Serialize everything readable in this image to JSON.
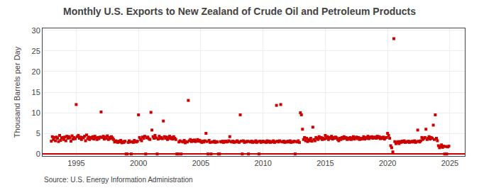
{
  "chart_data": {
    "type": "scatter",
    "title": "Monthly U.S. Exports to New Zealand of Crude Oil and Petroleum Products",
    "ylabel": "Thousand Barrels per Day",
    "annotations": [
      "Source: U.S. Energy Information Administration"
    ],
    "color": "#cc0000",
    "marker": "square",
    "grid": true,
    "xlim": [
      1992.3,
      2026.2
    ],
    "xticks": [
      1995,
      2000,
      2005,
      2010,
      2015,
      2020,
      2025
    ],
    "ylim": [
      -0.5,
      30.5
    ],
    "yticks": [
      0,
      5,
      10,
      15,
      20,
      25,
      30
    ],
    "x": [
      1993.0,
      1993.08,
      1993.17,
      1993.25,
      1993.33,
      1993.42,
      1993.5,
      1993.58,
      1993.67,
      1993.75,
      1993.83,
      1993.92,
      1994.0,
      1994.08,
      1994.17,
      1994.25,
      1994.33,
      1994.42,
      1994.5,
      1994.58,
      1994.67,
      1994.75,
      1994.83,
      1994.92,
      1995.0,
      1995.08,
      1995.17,
      1995.25,
      1995.33,
      1995.42,
      1995.5,
      1995.58,
      1995.67,
      1995.75,
      1995.83,
      1995.92,
      1996.0,
      1996.08,
      1996.17,
      1996.25,
      1996.33,
      1996.42,
      1996.5,
      1996.58,
      1996.67,
      1996.75,
      1996.83,
      1996.92,
      1997.0,
      1997.08,
      1997.17,
      1997.25,
      1997.33,
      1997.42,
      1997.5,
      1997.58,
      1997.67,
      1997.75,
      1997.83,
      1997.92,
      1998.0,
      1998.08,
      1998.17,
      1998.25,
      1998.33,
      1998.42,
      1998.5,
      1998.58,
      1998.67,
      1998.75,
      1998.83,
      1998.92,
      1999.0,
      1999.08,
      1999.17,
      1999.25,
      1999.33,
      1999.42,
      1999.5,
      1999.58,
      1999.67,
      1999.75,
      1999.83,
      1999.92,
      2000.0,
      2000.08,
      2000.17,
      2000.25,
      2000.33,
      2000.42,
      2000.5,
      2000.58,
      2000.67,
      2000.75,
      2000.83,
      2000.92,
      2001.0,
      2001.08,
      2001.17,
      2001.25,
      2001.33,
      2001.42,
      2001.5,
      2001.58,
      2001.67,
      2001.75,
      2001.83,
      2001.92,
      2002.0,
      2002.08,
      2002.17,
      2002.25,
      2002.33,
      2002.42,
      2002.5,
      2002.58,
      2002.67,
      2002.75,
      2002.83,
      2002.92,
      2003.0,
      2003.08,
      2003.17,
      2003.25,
      2003.33,
      2003.42,
      2003.5,
      2003.58,
      2003.67,
      2003.75,
      2003.83,
      2003.92,
      2004.0,
      2004.08,
      2004.17,
      2004.25,
      2004.33,
      2004.42,
      2004.5,
      2004.58,
      2004.67,
      2004.75,
      2004.83,
      2004.92,
      2005.0,
      2005.08,
      2005.17,
      2005.25,
      2005.33,
      2005.42,
      2005.5,
      2005.58,
      2005.67,
      2005.75,
      2005.83,
      2005.92,
      2006.0,
      2006.08,
      2006.17,
      2006.25,
      2006.33,
      2006.42,
      2006.5,
      2006.58,
      2006.67,
      2006.75,
      2006.83,
      2006.92,
      2007.0,
      2007.08,
      2007.17,
      2007.25,
      2007.33,
      2007.42,
      2007.5,
      2007.58,
      2007.67,
      2007.75,
      2007.83,
      2007.92,
      2008.0,
      2008.08,
      2008.17,
      2008.25,
      2008.33,
      2008.42,
      2008.5,
      2008.58,
      2008.67,
      2008.75,
      2008.83,
      2008.92,
      2009.0,
      2009.08,
      2009.17,
      2009.25,
      2009.33,
      2009.42,
      2009.5,
      2009.58,
      2009.67,
      2009.75,
      2009.83,
      2009.92,
      2010.0,
      2010.08,
      2010.17,
      2010.25,
      2010.33,
      2010.42,
      2010.5,
      2010.58,
      2010.67,
      2010.75,
      2010.83,
      2010.92,
      2011.0,
      2011.08,
      2011.17,
      2011.25,
      2011.33,
      2011.42,
      2011.5,
      2011.58,
      2011.67,
      2011.75,
      2011.83,
      2011.92,
      2012.0,
      2012.08,
      2012.17,
      2012.25,
      2012.33,
      2012.42,
      2012.5,
      2012.58,
      2012.67,
      2012.75,
      2012.83,
      2012.92,
      2013.0,
      2013.08,
      2013.17,
      2013.25,
      2013.33,
      2013.42,
      2013.5,
      2013.58,
      2013.67,
      2013.75,
      2013.83,
      2013.92,
      2014.0,
      2014.08,
      2014.17,
      2014.25,
      2014.33,
      2014.42,
      2014.5,
      2014.58,
      2014.67,
      2014.75,
      2014.83,
      2014.92,
      2015.0,
      2015.08,
      2015.17,
      2015.25,
      2015.33,
      2015.42,
      2015.5,
      2015.58,
      2015.67,
      2015.75,
      2015.83,
      2015.92,
      2016.0,
      2016.08,
      2016.17,
      2016.25,
      2016.33,
      2016.42,
      2016.5,
      2016.58,
      2016.67,
      2016.75,
      2016.83,
      2016.92,
      2017.0,
      2017.08,
      2017.17,
      2017.25,
      2017.33,
      2017.42,
      2017.5,
      2017.58,
      2017.67,
      2017.75,
      2017.83,
      2017.92,
      2018.0,
      2018.08,
      2018.17,
      2018.25,
      2018.33,
      2018.42,
      2018.5,
      2018.58,
      2018.67,
      2018.75,
      2018.83,
      2018.92,
      2019.0,
      2019.08,
      2019.17,
      2019.25,
      2019.33,
      2019.42,
      2019.5,
      2019.58,
      2019.67,
      2019.75,
      2019.83,
      2019.92,
      2020.0,
      2020.08,
      2020.17,
      2020.25,
      2020.33,
      2020.42,
      2020.5,
      2020.58,
      2020.67,
      2020.75,
      2020.83,
      2020.92,
      2021.0,
      2021.08,
      2021.17,
      2021.25,
      2021.33,
      2021.42,
      2021.5,
      2021.58,
      2021.67,
      2021.75,
      2021.83,
      2021.92,
      2022.0,
      2022.08,
      2022.17,
      2022.25,
      2022.33,
      2022.42,
      2022.5,
      2022.58,
      2022.67,
      2022.75,
      2022.83,
      2022.92,
      2023.0,
      2023.08,
      2023.17,
      2023.25,
      2023.33,
      2023.42,
      2023.5,
      2023.58,
      2023.67,
      2023.75,
      2023.83,
      2023.92,
      2024.0,
      2024.08,
      2024.17,
      2024.25,
      2024.33,
      2024.42,
      2024.5,
      2024.58,
      2024.67,
      2024.75,
      2024.83,
      2024.92
    ],
    "values": [
      3.1,
      4.2,
      3.5,
      4.0,
      3.2,
      4.1,
      3.8,
      3.0,
      4.5,
      3.3,
      3.9,
      4.0,
      3.5,
      4.1,
      3.2,
      4.3,
      3.8,
      4.2,
      3.9,
      3.1,
      4.4,
      3.6,
      4.0,
      3.7,
      12.0,
      4.2,
      4.5,
      3.8,
      4.1,
      3.5,
      4.0,
      3.9,
      4.3,
      3.2,
      4.6,
      3.7,
      4.1,
      3.5,
      4.0,
      3.8,
      4.2,
      3.6,
      4.3,
      3.9,
      3.5,
      4.0,
      3.7,
      4.1,
      10.2,
      4.0,
      4.3,
      3.6,
      4.1,
      3.8,
      4.4,
      3.5,
      4.0,
      3.7,
      4.2,
      3.9,
      3.5,
      2.9,
      3.2,
      3.0,
      2.8,
      3.1,
      2.9,
      3.3,
      2.7,
      3.0,
      2.8,
      3.1,
      0.0,
      0.0,
      2.8,
      3.2,
      2.9,
      0.0,
      3.0,
      2.8,
      3.3,
      3.0,
      2.9,
      3.1,
      9.5,
      4.0,
      3.5,
      3.2,
      4.1,
      3.8,
      4.3,
      0.0,
      3.9,
      4.1,
      3.7,
      3.5,
      10.1,
      5.8,
      4.2,
      3.8,
      4.5,
      3.9,
      0.0,
      3.6,
      4.3,
      3.8,
      4.0,
      3.7,
      8.0,
      4.2,
      3.8,
      4.1,
      3.5,
      3.9,
      4.3,
      3.7,
      4.0,
      3.6,
      4.2,
      3.8,
      3.5,
      0.0,
      0.0,
      2.9,
      3.2,
      0.0,
      3.0,
      2.9,
      3.3,
      2.7,
      3.0,
      2.9,
      13.0,
      3.2,
      3.5,
      3.0,
      3.3,
      3.1,
      3.4,
      3.0,
      3.2,
      3.5,
      3.1,
      3.3,
      3.0,
      2.8,
      3.1,
      2.9,
      3.2,
      5.0,
      3.0,
      0.0,
      3.3,
      2.8,
      0.0,
      2.9,
      2.9,
      3.1,
      2.8,
      3.0,
      2.9,
      0.0,
      0.0,
      3.0,
      2.9,
      3.1,
      2.8,
      3.0,
      3.1,
      2.9,
      3.0,
      3.2,
      4.2,
      3.0,
      2.9,
      3.1,
      2.8,
      3.0,
      2.9,
      3.2,
      3.0,
      2.8,
      9.5,
      3.1,
      0.0,
      3.2,
      2.8,
      3.0,
      2.9,
      3.1,
      0.0,
      3.0,
      2.9,
      3.1,
      2.8,
      3.0,
      2.9,
      3.2,
      2.8,
      3.0,
      0.0,
      3.1,
      2.8,
      3.0,
      3.1,
      2.9,
      3.0,
      2.8,
      3.2,
      2.9,
      3.1,
      2.8,
      3.0,
      2.9,
      3.2,
      2.8,
      3.0,
      11.8,
      3.1,
      2.9,
      3.2,
      12.0,
      3.0,
      2.9,
      3.1,
      2.8,
      3.0,
      2.9,
      3.1,
      2.9,
      3.2,
      2.8,
      3.0,
      2.9,
      3.1,
      0.0,
      3.0,
      2.9,
      3.2,
      2.8,
      10.0,
      9.5,
      6.0,
      3.5,
      4.0,
      3.2,
      3.8,
      3.0,
      3.5,
      3.2,
      3.8,
      3.1,
      6.5,
      3.5,
      3.2,
      4.0,
      3.8,
      3.5,
      4.2,
      3.8,
      4.0,
      3.5,
      3.8,
      3.6,
      4.5,
      3.8,
      4.2,
      3.5,
      4.0,
      3.8,
      4.3,
      3.6,
      4.0,
      3.8,
      4.1,
      3.9,
      3.5,
      3.2,
      3.8,
      3.5,
      4.0,
      3.7,
      4.2,
      3.8,
      4.0,
      3.5,
      3.8,
      3.6,
      4.0,
      3.5,
      3.8,
      4.2,
      3.6,
      3.9,
      4.1,
      3.7,
      4.0,
      3.5,
      3.8,
      3.6,
      3.8,
      4.2,
      3.6,
      4.0,
      3.8,
      4.3,
      3.7,
      4.1,
      3.9,
      4.2,
      3.8,
      4.0,
      4.1,
      3.8,
      4.3,
      3.9,
      4.2,
      3.7,
      4.0,
      3.8,
      4.1,
      3.6,
      3.9,
      4.0,
      5.0,
      4.5,
      3.8,
      2.0,
      1.5,
      0.5,
      28.0,
      3.0,
      2.5,
      2.8,
      3.0,
      2.5,
      3.0,
      2.8,
      3.1,
      2.9,
      3.2,
      2.8,
      3.0,
      2.9,
      3.1,
      2.8,
      3.0,
      2.9,
      3.1,
      2.9,
      3.2,
      2.8,
      3.0,
      5.8,
      3.1,
      2.9,
      3.2,
      4.0,
      3.5,
      3.8,
      4.0,
      6.0,
      3.5,
      3.8,
      4.2,
      3.6,
      4.0,
      3.8,
      7.0,
      3.5,
      9.5,
      3.8,
      3.2,
      2.0,
      1.5,
      1.8,
      2.2,
      1.6,
      1.9,
      0.0,
      1.8,
      0.0,
      1.7,
      1.9
    ]
  }
}
